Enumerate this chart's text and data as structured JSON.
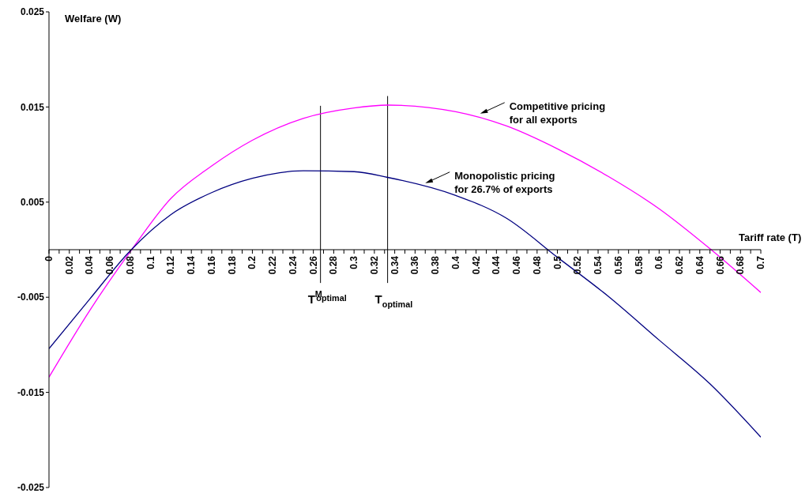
{
  "chart_data": {
    "type": "line",
    "xlabel": "Tariff rate (T)",
    "ylabel": "Welfare (W)",
    "x": [
      0,
      0.04,
      0.08,
      0.12,
      0.16,
      0.2,
      0.25,
      0.3,
      0.333,
      0.4,
      0.45,
      0.5,
      0.55,
      0.6,
      0.65,
      0.7
    ],
    "series": [
      {
        "color": "#ff00ff",
        "values": [
          -0.0134,
          -0.0064,
          -0.0002,
          0.0054,
          0.0088,
          0.0115,
          0.0138,
          0.0149,
          0.0152,
          0.0145,
          0.013,
          0.0106,
          0.0077,
          0.0043,
          0.0001,
          -0.0045
        ]
      },
      {
        "color": "#000080",
        "values": [
          -0.0104,
          -0.0052,
          -0.0001,
          0.0037,
          0.006,
          0.0075,
          0.0083,
          0.0082,
          0.0076,
          0.0057,
          0.0033,
          -0.0008,
          -0.0049,
          -0.0095,
          -0.0141,
          -0.0197
        ]
      }
    ],
    "xlim": [
      0,
      0.7
    ],
    "ylim": [
      -0.025,
      0.025
    ],
    "xticks": [
      0,
      {
        "value": 0.01,
        "label": null
      },
      0.02,
      {
        "value": 0.03,
        "label": null
      },
      0.04,
      {
        "value": 0.05,
        "label": null
      },
      0.06,
      {
        "value": 0.07,
        "label": null
      },
      0.08,
      {
        "value": 0.09,
        "label": null
      },
      0.1,
      {
        "value": 0.11,
        "label": null
      },
      0.12,
      {
        "value": 0.13,
        "label": null
      },
      0.14,
      {
        "value": 0.15,
        "label": null
      },
      0.16,
      {
        "value": 0.17,
        "label": null
      },
      0.18,
      {
        "value": 0.19,
        "label": null
      },
      0.2,
      {
        "value": 0.21,
        "label": null
      },
      0.22,
      {
        "value": 0.23,
        "label": null
      },
      0.24,
      {
        "value": 0.25,
        "label": null
      },
      0.26,
      {
        "value": 0.27,
        "label": null
      },
      0.28,
      {
        "value": 0.29,
        "label": null
      },
      0.3,
      {
        "value": 0.31,
        "label": null
      },
      0.32,
      {
        "value": 0.33,
        "label": null
      },
      0.34,
      {
        "value": 0.35,
        "label": null
      },
      0.36,
      {
        "value": 0.37,
        "label": null
      },
      0.38,
      {
        "value": 0.39,
        "label": null
      },
      0.4,
      {
        "value": 0.41,
        "label": null
      },
      0.42,
      {
        "value": 0.43,
        "label": null
      },
      0.44,
      {
        "value": 0.45,
        "label": null
      },
      0.46,
      {
        "value": 0.47,
        "label": null
      },
      0.48,
      {
        "value": 0.49,
        "label": null
      },
      0.5,
      {
        "value": 0.51,
        "label": null
      },
      0.52,
      {
        "value": 0.53,
        "label": null
      },
      0.54,
      {
        "value": 0.55,
        "label": null
      },
      0.56,
      {
        "value": 0.57,
        "label": null
      },
      0.58,
      {
        "value": 0.59,
        "label": null
      },
      0.6,
      {
        "value": 0.61,
        "label": null
      },
      0.62,
      {
        "value": 0.63,
        "label": null
      },
      0.64,
      {
        "value": 0.65,
        "label": null
      },
      0.66,
      {
        "value": 0.67,
        "label": null
      },
      0.68,
      {
        "value": 0.69,
        "label": null
      },
      0.7
    ],
    "yticks": [
      0.025,
      0.015,
      0.005,
      -0.005,
      -0.015,
      -0.025
    ],
    "ref_lines": [
      {
        "axis": "x",
        "value": 0.267,
        "label": "T$^{M}$$_{optimal}$"
      },
      {
        "axis": "x",
        "value": 0.333,
        "label": "T$_{optimal}$"
      }
    ],
    "annotations": [
      {
        "text": "Competitive pricing\nfor all exports",
        "x": 0.424,
        "y": 0.0143
      },
      {
        "text": "Monopolistic pricing\nfor 26.7% of exports",
        "x": 0.37,
        "y": 0.007
      }
    ],
    "marker": "none",
    "line_style": "solid",
    "grid": false,
    "legend": false
  }
}
